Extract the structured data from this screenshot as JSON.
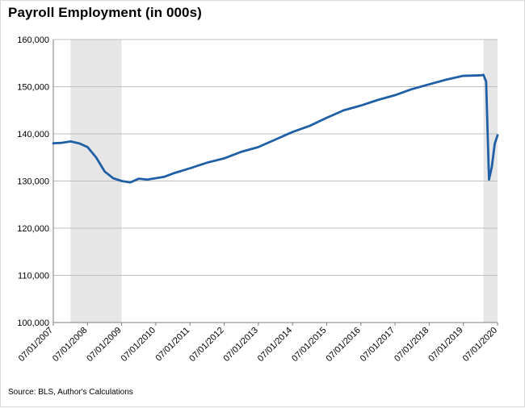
{
  "chart_data": {
    "type": "line",
    "title": "Payroll Employment (in 000s)",
    "source": "Source: BLS, Author's Calculations",
    "ylim": [
      100000,
      160000
    ],
    "yticks": [
      100000,
      110000,
      120000,
      130000,
      140000,
      150000,
      160000
    ],
    "ytick_labels": [
      "100,000",
      "110,000",
      "120,000",
      "130,000",
      "140,000",
      "150,000",
      "160,000"
    ],
    "xlim": [
      "2007-07-01",
      "2020-07-01"
    ],
    "xtick_labels": [
      "07/01/2007",
      "07/01/2008",
      "07/01/2009",
      "07/01/2010",
      "07/01/2011",
      "07/01/2012",
      "07/01/2013",
      "07/01/2014",
      "07/01/2015",
      "07/01/2016",
      "07/01/2017",
      "07/01/2018",
      "07/01/2019",
      "07/01/2020"
    ],
    "grid": "horizontal",
    "line_color": "#1f5fa6",
    "recession_color": "#e6e6e6",
    "recessions": [
      {
        "start": "2008-01-01",
        "end": "2009-06-30"
      },
      {
        "start": "2020-02-01",
        "end": "2020-07-01"
      }
    ],
    "series": [
      {
        "x": [
          "2007-07-01",
          "2007-10-01",
          "2008-01-01",
          "2008-04-01",
          "2008-07-01",
          "2008-10-01",
          "2009-01-01",
          "2009-04-01",
          "2009-07-01",
          "2009-10-01",
          "2010-01-01",
          "2010-04-01",
          "2010-07-01",
          "2010-10-01",
          "2011-01-01",
          "2011-07-01",
          "2012-01-01",
          "2012-07-01",
          "2013-01-01",
          "2013-07-01",
          "2014-01-01",
          "2014-07-01",
          "2015-01-01",
          "2015-07-01",
          "2016-01-01",
          "2016-07-01",
          "2017-01-01",
          "2017-07-01",
          "2018-01-01",
          "2018-07-01",
          "2019-01-01",
          "2019-07-01",
          "2020-01-01",
          "2020-02-01",
          "2020-03-01",
          "2020-04-01",
          "2020-05-01",
          "2020-06-01",
          "2020-07-01"
        ],
        "values": [
          138000,
          138100,
          138400,
          138000,
          137200,
          135000,
          132000,
          130600,
          130000,
          129700,
          130500,
          130300,
          130600,
          130900,
          131600,
          132700,
          133900,
          134800,
          136200,
          137200,
          138800,
          140400,
          141700,
          143400,
          145000,
          146000,
          147200,
          148200,
          149500,
          150500,
          151500,
          152300,
          152400,
          152500,
          151100,
          130300,
          133000,
          137900,
          139700
        ]
      }
    ]
  }
}
